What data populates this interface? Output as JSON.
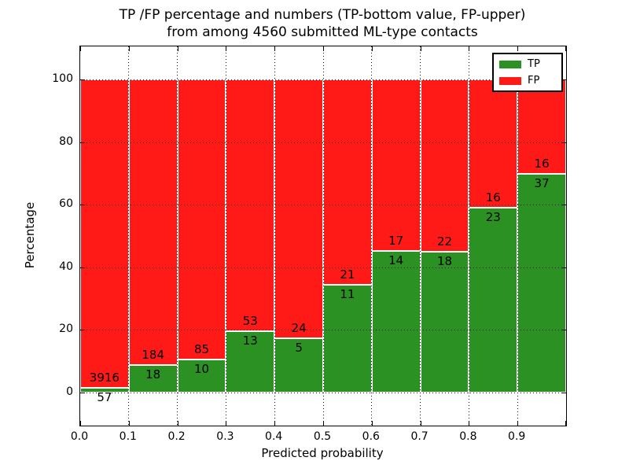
{
  "figure": {
    "title_line1": "TP /FP percentage and numbers (TP-bottom value, FP-upper)",
    "title_line2": "from among 4560 submitted ML-type contacts"
  },
  "chart_data": {
    "type": "bar",
    "stacked": true,
    "title": "TP /FP percentage and numbers (TP-bottom value, FP-upper) from among 4560 submitted ML-type contacts",
    "xlabel": "Predicted probability",
    "ylabel": "Percentage",
    "total_submitted": 4560,
    "bin_edges": [
      0.0,
      0.1,
      0.2,
      0.3,
      0.4,
      0.5,
      0.6,
      0.7,
      0.8,
      0.9,
      1.0
    ],
    "x_tick_labels": [
      "0.0",
      "0.1",
      "0.2",
      "0.3",
      "0.4",
      "0.5",
      "0.6",
      "0.7",
      "0.8",
      "0.9"
    ],
    "y_tick_labels": [
      "0",
      "20",
      "40",
      "60",
      "80",
      "100"
    ],
    "y_tick_values": [
      0,
      20,
      40,
      60,
      80,
      100
    ],
    "xlim": [
      0.0,
      1.0
    ],
    "ylim": [
      -10.5,
      110
    ],
    "grid": true,
    "grid_style": "dotted",
    "bar_edge_color": "#ffffff",
    "series": [
      {
        "name": "TP",
        "color": "#2a9122",
        "position": "bottom",
        "values": [
          57,
          18,
          10,
          13,
          5,
          11,
          14,
          18,
          23,
          37
        ]
      },
      {
        "name": "FP",
        "color": "#ff1a17",
        "position": "top",
        "values": [
          3916,
          184,
          85,
          53,
          24,
          21,
          17,
          22,
          16,
          16
        ]
      }
    ],
    "tp_percent": [
      1.4,
      8.9,
      10.5,
      19.7,
      17.2,
      34.4,
      45.2,
      45.0,
      59.0,
      69.8
    ],
    "legend": {
      "position": "upper right",
      "entries": [
        {
          "label": "TP",
          "color": "#2a9122"
        },
        {
          "label": "FP",
          "color": "#ff1a17"
        }
      ]
    }
  }
}
